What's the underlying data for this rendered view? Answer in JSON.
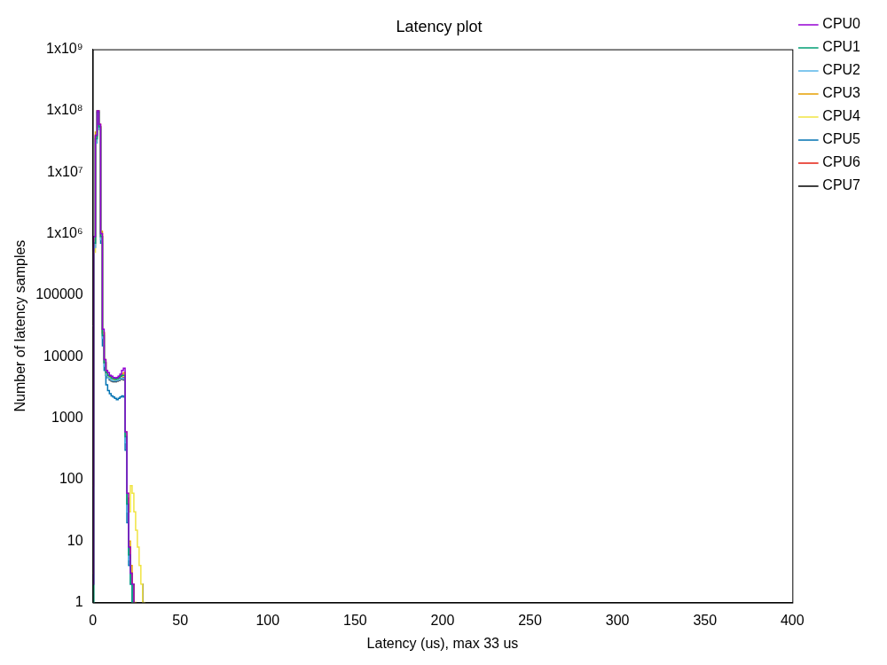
{
  "chart_data": {
    "type": "line",
    "title": "Latency plot",
    "x_label": "Latency (us), max 33 us",
    "y_label": "Number of latency samples",
    "log": "y",
    "grid": false,
    "legend": "upper right",
    "line_style": "steps",
    "marker": "none",
    "xlim": [
      0,
      400
    ],
    "xticks": [
      0,
      50,
      100,
      150,
      200,
      250,
      300,
      350,
      400
    ],
    "ylim": [
      1,
      1000000000
    ],
    "yticks": [
      1,
      10,
      100,
      1000,
      10000,
      100000,
      {
        "value": 1000000,
        "label": "1x10⁶"
      },
      {
        "value": 10000000,
        "label": "1x10⁷"
      },
      {
        "value": 100000000,
        "label": "1x10⁸"
      },
      {
        "value": 1000000000,
        "label": "1x10⁹"
      }
    ],
    "x": [
      0,
      1,
      2,
      3,
      4,
      5,
      6,
      7,
      8,
      9,
      10,
      11,
      12,
      13,
      14,
      15,
      16,
      17,
      18,
      19,
      20,
      21,
      22,
      23,
      24,
      25,
      26,
      27,
      28,
      29,
      30,
      31,
      32,
      33,
      34,
      35
    ],
    "series": [
      {
        "name": "CPU0",
        "color": "#9400d3",
        "values": [
          2,
          900000,
          40000000,
          100000000,
          60000000,
          1000000,
          28000,
          9000,
          6000,
          5500,
          5000,
          4800,
          4600,
          4500,
          4600,
          4800,
          5200,
          6000,
          6500,
          600,
          60,
          8,
          3,
          2,
          1,
          null,
          null,
          null,
          null,
          null,
          null,
          1,
          null,
          1,
          null,
          null
        ]
      },
      {
        "name": "CPU1",
        "color": "#009e73",
        "values": [
          1,
          700000,
          35000000,
          95000000,
          55000000,
          900000,
          22000,
          8000,
          5500,
          5000,
          4800,
          4500,
          4400,
          4300,
          4400,
          4500,
          4800,
          5000,
          5000,
          500,
          40,
          6,
          2,
          1,
          1,
          null,
          1,
          null,
          null,
          null,
          null,
          null,
          null,
          null,
          null,
          null
        ]
      },
      {
        "name": "CPU2",
        "color": "#56b4e9",
        "values": [
          1,
          600000,
          30000000,
          90000000,
          50000000,
          800000,
          20000,
          7000,
          5000,
          4500,
          4300,
          4100,
          4000,
          4000,
          4100,
          4200,
          4400,
          4500,
          4300,
          400,
          30,
          5,
          2,
          1,
          null,
          null,
          null,
          null,
          null,
          null,
          null,
          null,
          null,
          null,
          null,
          null
        ]
      },
      {
        "name": "CPU3",
        "color": "#e69f00",
        "values": [
          3,
          800000,
          45000000,
          100000000,
          55000000,
          1100000,
          25000,
          9000,
          6000,
          5000,
          4700,
          4500,
          4400,
          4300,
          4400,
          4600,
          4800,
          5200,
          5500,
          600,
          50,
          10,
          4,
          2,
          1,
          1,
          null,
          null,
          1,
          null,
          null,
          null,
          null,
          null,
          null,
          null
        ]
      },
      {
        "name": "CPU4",
        "color": "#f0e442",
        "values": [
          1,
          500000,
          30000000,
          90000000,
          50000000,
          900000,
          24000,
          8000,
          5200,
          4800,
          4500,
          4300,
          4200,
          4200,
          4300,
          4400,
          4600,
          4800,
          4800,
          500,
          60,
          30,
          80,
          60,
          30,
          15,
          8,
          4,
          2,
          1,
          1,
          null,
          null,
          null,
          null,
          null
        ]
      },
      {
        "name": "CPU5",
        "color": "#0072b2",
        "values": [
          1,
          600000,
          35000000,
          100000000,
          50000000,
          700000,
          15000,
          6000,
          3500,
          2800,
          2500,
          2300,
          2200,
          2100,
          2000,
          2100,
          2200,
          2300,
          2200,
          300,
          20,
          4,
          2,
          1,
          null,
          null,
          null,
          null,
          null,
          null,
          null,
          null,
          null,
          null,
          null,
          null
        ]
      },
      {
        "name": "CPU6",
        "color": "#e51e10",
        "values": [
          80,
          900000,
          40000000,
          95000000,
          60000000,
          1000000,
          25000,
          8000,
          5500,
          4800,
          4500,
          4300,
          4200,
          4100,
          4200,
          4400,
          4600,
          4800,
          4600,
          500,
          50,
          8,
          3,
          1,
          1,
          null,
          null,
          null,
          null,
          null,
          null,
          null,
          null,
          null,
          null,
          null
        ]
      },
      {
        "name": "CPU7",
        "color": "#000000",
        "values": [
          2,
          700000,
          38000000,
          100000000,
          55000000,
          900000,
          24000,
          8000,
          5000,
          4500,
          4200,
          4000,
          3900,
          3900,
          4000,
          4100,
          4300,
          4500,
          4200,
          500,
          40,
          6,
          3,
          2,
          1,
          null,
          1,
          null,
          2,
          1,
          null,
          null,
          null,
          null,
          null,
          null
        ]
      }
    ]
  }
}
